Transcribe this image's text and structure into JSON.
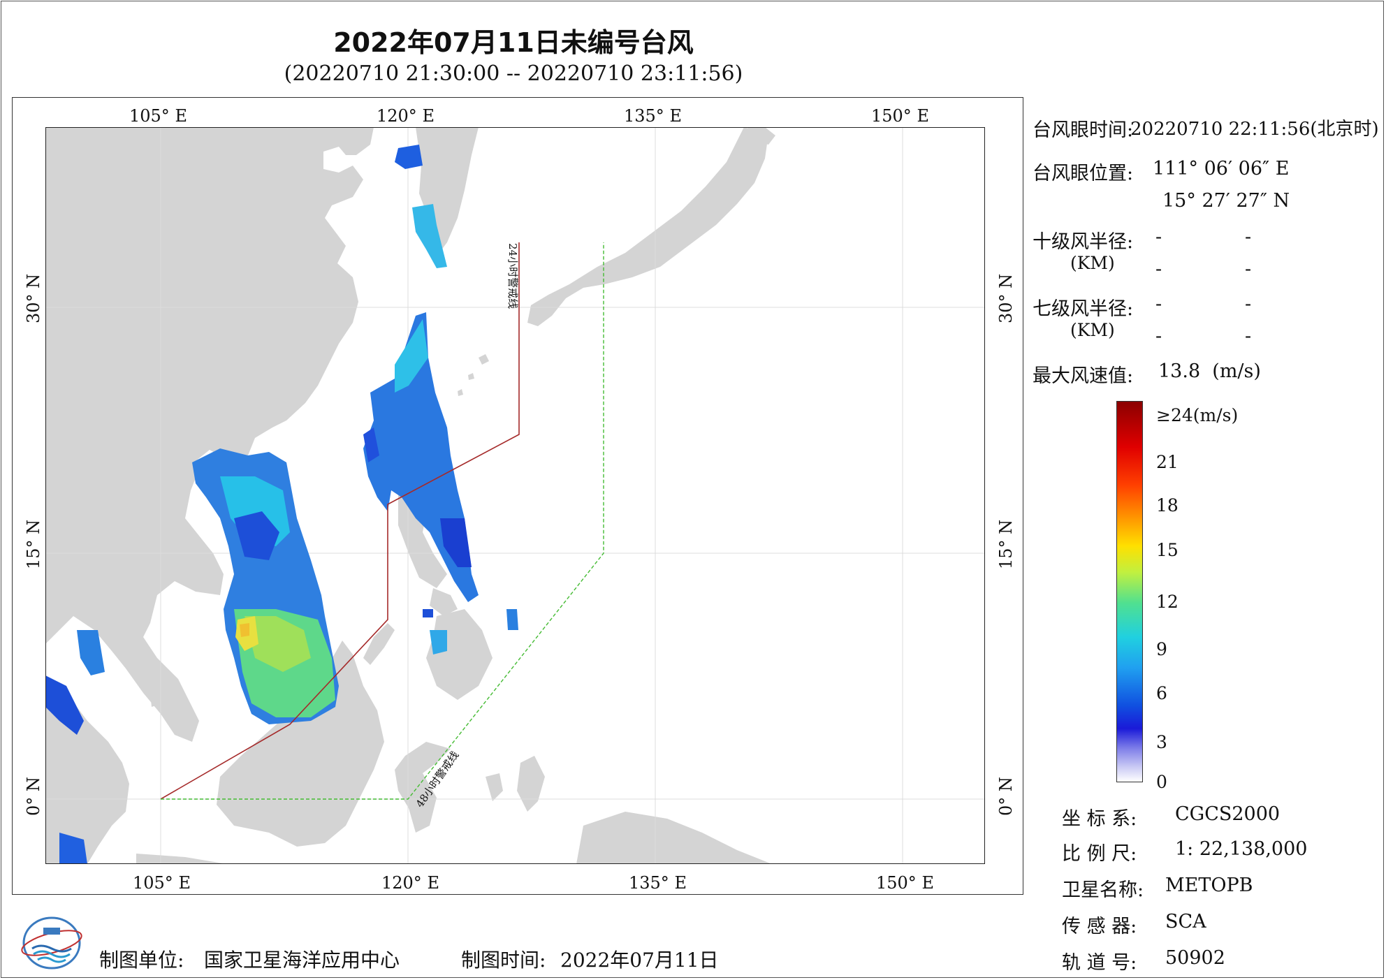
{
  "title": "2022年07月11日未编号台风",
  "subtitle": "(20220710 21:30:00 -- 20220710 23:11:56)",
  "map": {
    "lon_ticks_top": [
      "105° E",
      "120° E",
      "135° E",
      "150° E"
    ],
    "lon_ticks_bottom": [
      "105° E",
      "120° E",
      "135° E",
      "150° E"
    ],
    "lat_ticks_left": [
      "30° N",
      "15° N",
      "0° N"
    ],
    "lat_ticks_right": [
      "30° N",
      "15° N",
      "0° N"
    ],
    "lon_range": [
      98,
      155
    ],
    "lat_range": [
      -4,
      41
    ],
    "line_24h_label": "24小时警戒线",
    "line_48h_label": "48小时警戒线",
    "colors": {
      "land": "#d4d4d4",
      "sea": "#ffffff",
      "line_24h": "#a52a2a",
      "line_48h": "#44bb33",
      "grid": "#dddddd"
    }
  },
  "info": {
    "eye_time_label": "台风眼时间:",
    "eye_time_value": "20220710 22:11:56(北京时)",
    "eye_pos_label": "台风眼位置:",
    "eye_lon": "111° 06′ 06″ E",
    "eye_lat": "15° 27′ 27″ N",
    "r10_label": "十级风半径:",
    "r7_label": "七级风半径:",
    "km_label": "(KM)",
    "dash": "-",
    "max_wind_label": "最大风速值:",
    "max_wind_value": "13.8  (m/s)"
  },
  "colorbar": {
    "labels": [
      "≥24(m/s)",
      "21",
      "18",
      "15",
      "12",
      "9",
      "6",
      "3",
      "0"
    ],
    "values": [
      24,
      21,
      18,
      15,
      12,
      9,
      6,
      3,
      0
    ]
  },
  "meta": {
    "crs_label": "坐 标 系:",
    "crs_value": "CGCS2000",
    "scale_label": "比 例 尺:",
    "scale_value": "1: 22,138,000",
    "satellite_label": "卫星名称:",
    "satellite_value": "METOPB",
    "sensor_label": "传 感 器:",
    "sensor_value": "SCA",
    "orbit_label": "轨 道 号:",
    "orbit_value": "50902"
  },
  "footer": {
    "unit_label": "制图单位:",
    "unit_value": "国家卫星海洋应用中心",
    "time_label": "制图时间:",
    "time_value": "2022年07月11日"
  }
}
